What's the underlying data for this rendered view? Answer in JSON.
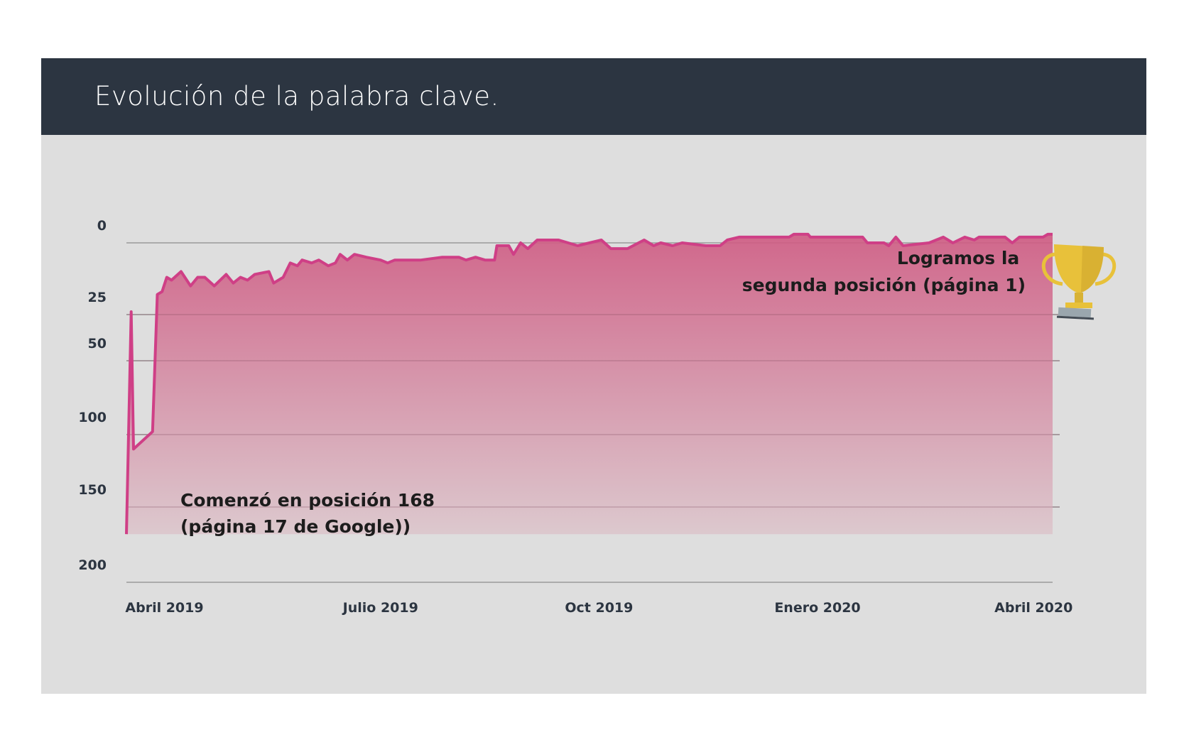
{
  "header": {
    "title": "Evolución de la palabra clave."
  },
  "colors": {
    "header_bg": "#2c3541",
    "panel_bg": "#dedede",
    "line": "#cf3f86",
    "fill_top": "#cf5a82",
    "fill_bottom": "#dcc6cc",
    "gridline": "#9a9a9a"
  },
  "icons": {
    "trophy": "trophy-icon"
  },
  "chart_data": {
    "type": "area",
    "title": "Evolución de la palabra clave.",
    "xlabel": "",
    "ylabel": "",
    "y_reversed": true,
    "ylim": [
      0,
      200
    ],
    "yticks": [
      0,
      25,
      50,
      100,
      150,
      200
    ],
    "xlim": [
      "2019-03-16",
      "2020-04-09"
    ],
    "xticks": [
      {
        "date": "2019-04-01",
        "label": "Abril 2019"
      },
      {
        "date": "2019-07-01",
        "label": "Julio 2019"
      },
      {
        "date": "2019-10-01",
        "label": "Oct 2019"
      },
      {
        "date": "2020-01-01",
        "label": "Enero 2020"
      },
      {
        "date": "2020-04-01",
        "label": "Abril 2020"
      }
    ],
    "grid": true,
    "legend": "none",
    "series": [
      {
        "points": [
          [
            "2019-03-16",
            168
          ],
          [
            "2019-03-18",
            24
          ],
          [
            "2019-03-19",
            110
          ],
          [
            "2019-03-27",
            98
          ],
          [
            "2019-03-29",
            18
          ],
          [
            "2019-03-31",
            17
          ],
          [
            "2019-04-02",
            12
          ],
          [
            "2019-04-04",
            13
          ],
          [
            "2019-04-08",
            10
          ],
          [
            "2019-04-12",
            15
          ],
          [
            "2019-04-15",
            12
          ],
          [
            "2019-04-18",
            12
          ],
          [
            "2019-04-22",
            15
          ],
          [
            "2019-04-27",
            11
          ],
          [
            "2019-04-30",
            14
          ],
          [
            "2019-05-03",
            12
          ],
          [
            "2019-05-06",
            13
          ],
          [
            "2019-05-09",
            11
          ],
          [
            "2019-05-15",
            10
          ],
          [
            "2019-05-17",
            14
          ],
          [
            "2019-05-21",
            12
          ],
          [
            "2019-05-24",
            7
          ],
          [
            "2019-05-27",
            8
          ],
          [
            "2019-05-29",
            6
          ],
          [
            "2019-06-02",
            7
          ],
          [
            "2019-06-05",
            6
          ],
          [
            "2019-06-09",
            8
          ],
          [
            "2019-06-12",
            7
          ],
          [
            "2019-06-14",
            4
          ],
          [
            "2019-06-17",
            6
          ],
          [
            "2019-06-20",
            4
          ],
          [
            "2019-06-25",
            5
          ],
          [
            "2019-07-01",
            6
          ],
          [
            "2019-07-04",
            7
          ],
          [
            "2019-07-07",
            6
          ],
          [
            "2019-07-18",
            6
          ],
          [
            "2019-07-27",
            5
          ],
          [
            "2019-08-03",
            5
          ],
          [
            "2019-08-06",
            6
          ],
          [
            "2019-08-10",
            5
          ],
          [
            "2019-08-14",
            6
          ],
          [
            "2019-08-18",
            6
          ],
          [
            "2019-08-19",
            1
          ],
          [
            "2019-08-24",
            1
          ],
          [
            "2019-08-26",
            4
          ],
          [
            "2019-08-29",
            0
          ],
          [
            "2019-09-01",
            2
          ],
          [
            "2019-09-05",
            -1
          ],
          [
            "2019-09-14",
            -1
          ],
          [
            "2019-09-22",
            1
          ],
          [
            "2019-10-02",
            -1
          ],
          [
            "2019-10-06",
            2
          ],
          [
            "2019-10-13",
            2
          ],
          [
            "2019-10-20",
            -1
          ],
          [
            "2019-10-24",
            1
          ],
          [
            "2019-10-27",
            0
          ],
          [
            "2019-11-01",
            1
          ],
          [
            "2019-11-05",
            0
          ],
          [
            "2019-11-15",
            1
          ],
          [
            "2019-11-21",
            1
          ],
          [
            "2019-11-24",
            -1
          ],
          [
            "2019-11-29",
            -2
          ],
          [
            "2019-12-20",
            -2
          ],
          [
            "2019-12-22",
            -3
          ],
          [
            "2019-12-28",
            -3
          ],
          [
            "2019-12-29",
            -2
          ],
          [
            "2020-01-20",
            -2
          ],
          [
            "2020-01-22",
            0
          ],
          [
            "2020-01-29",
            0
          ],
          [
            "2020-01-31",
            1
          ],
          [
            "2020-02-03",
            -2
          ],
          [
            "2020-02-06",
            1
          ],
          [
            "2020-02-17",
            0
          ],
          [
            "2020-02-23",
            -2
          ],
          [
            "2020-02-27",
            0
          ],
          [
            "2020-03-03",
            -2
          ],
          [
            "2020-03-07",
            -1
          ],
          [
            "2020-03-09",
            -2
          ],
          [
            "2020-03-17",
            -2
          ],
          [
            "2020-03-20",
            -2
          ],
          [
            "2020-03-23",
            0
          ],
          [
            "2020-03-26",
            -2
          ],
          [
            "2020-04-03",
            -2
          ],
          [
            "2020-04-05",
            -2
          ],
          [
            "2020-04-07",
            -3
          ],
          [
            "2020-04-09",
            -3
          ]
        ]
      }
    ],
    "annotations": [
      {
        "lines": [
          "Comenzó en posición 168",
          "(página 17 de Google))"
        ]
      },
      {
        "lines": [
          "Logramos la",
          "segunda posición (página 1)"
        ]
      }
    ]
  }
}
